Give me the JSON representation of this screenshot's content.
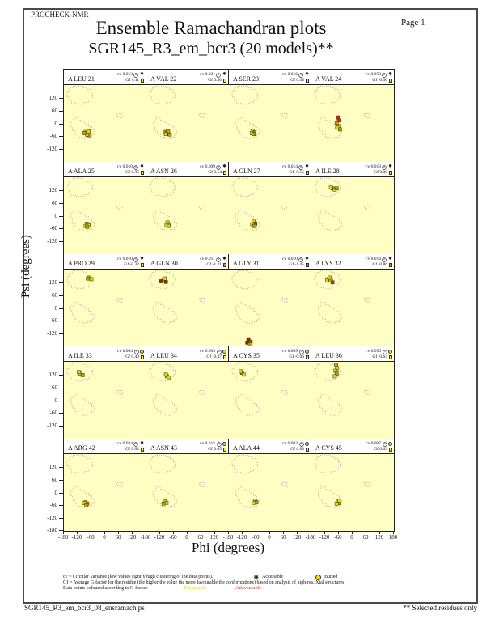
{
  "page": {
    "app": "PROCHECK-NMR",
    "page_label": "Page  1",
    "title": "Ensemble Ramachandran plots",
    "subtitle": "SGR145_R3_em_bcr3 (20 models)**",
    "footer_left": "SGR145_R3_em_bcr3_08_ensramach.ps",
    "footer_right": "** Selected residues only"
  },
  "axes": {
    "x_label": "Phi (degrees)",
    "y_label": "Psi (degrees)",
    "x_ticks_per_panel": [
      -180,
      -120,
      -60,
      0,
      60,
      120
    ],
    "x_tick_final": 180,
    "y_ticks_per_panel": [
      120,
      60,
      0,
      -60,
      -120
    ],
    "y_tick_final": -180
  },
  "stats_labels": {
    "cv_prefix": "cv",
    "gf_prefix": "Gf"
  },
  "legend": {
    "line1": "cv = Circular Variance (low values signify high clustering of the data points).",
    "accessible_label": "Accessible",
    "buried_label": "Buried",
    "line2": "Gf = Average G-factor for the residue (the higher the value the more favourable the conformations) based on analysis of high-res. Xtal structures",
    "line3": "Data points coloured according to G-factor:",
    "favourable_label": "Favourable",
    "unfavourable_label": "Unfavourable"
  },
  "colors": {
    "plot_bg": "#ffffc4",
    "region_outline": "#9a9a8a",
    "point_outline": "#3a3a00",
    "gf_favourable_square": "#ffec00",
    "gf_unfavourable_square": "#f08000",
    "points": {
      "y": "#e3cf1d",
      "v": "#a9a312",
      "o": "#e2930f",
      "r": "#d03010",
      "d": "#8c2a05"
    }
  },
  "chart_data": {
    "type": "scatter",
    "grid": "4 cols x 5 rows of Ramachandran subplots, phi/psi range -180..180",
    "subplots": [
      {
        "residue": "A LEU 21",
        "cv": "0.013",
        "gf": "0.11",
        "accessibility": "accessible",
        "gf_flag": "favourable",
        "points": [
          {
            "phi": -85,
            "psi": -40,
            "c": "y"
          },
          {
            "phi": -75,
            "psi": -45,
            "c": "o"
          },
          {
            "phi": -70,
            "psi": -55,
            "c": "o"
          },
          {
            "phi": -80,
            "psi": -52,
            "c": "y"
          },
          {
            "phi": -90,
            "psi": -45,
            "c": "v"
          },
          {
            "phi": -72,
            "psi": -38,
            "c": "y"
          }
        ]
      },
      {
        "residue": "A VAL 22",
        "cv": "0.021",
        "gf": "0.30",
        "accessibility": "accessible",
        "gf_flag": "favourable",
        "points": [
          {
            "phi": -100,
            "psi": -40,
            "c": "v"
          },
          {
            "phi": -90,
            "psi": -45,
            "c": "y"
          },
          {
            "phi": -85,
            "psi": -38,
            "c": "o"
          },
          {
            "phi": -95,
            "psi": -50,
            "c": "y"
          },
          {
            "phi": -78,
            "psi": -52,
            "c": "v"
          }
        ]
      },
      {
        "residue": "A SER 23",
        "cv": "0.016",
        "gf": "0.45",
        "accessibility": "accessible",
        "gf_flag": "favourable",
        "points": [
          {
            "phi": -75,
            "psi": -35,
            "c": "y"
          },
          {
            "phi": -68,
            "psi": -42,
            "c": "v"
          },
          {
            "phi": -80,
            "psi": -45,
            "c": "y"
          },
          {
            "phi": -72,
            "psi": -50,
            "c": "v"
          }
        ]
      },
      {
        "residue": "A VAL 24",
        "cv": "0.058",
        "gf": "-0.36",
        "accessibility": "accessible",
        "gf_flag": "favourable",
        "points": [
          {
            "phi": -65,
            "psi": 28,
            "c": "r"
          },
          {
            "phi": -60,
            "psi": 14,
            "c": "r"
          },
          {
            "phi": -70,
            "psi": 0,
            "c": "o"
          },
          {
            "phi": -62,
            "psi": -12,
            "c": "y"
          },
          {
            "phi": -55,
            "psi": -28,
            "c": "v"
          },
          {
            "phi": -68,
            "psi": -20,
            "c": "y"
          }
        ]
      },
      {
        "residue": "A ALA 25",
        "cv": "0.010",
        "gf": "0.35",
        "accessibility": "accessible",
        "gf_flag": "favourable",
        "points": [
          {
            "phi": -80,
            "psi": -38,
            "c": "v"
          },
          {
            "phi": -72,
            "psi": -45,
            "c": "y"
          },
          {
            "phi": -85,
            "psi": -48,
            "c": "y"
          },
          {
            "phi": -78,
            "psi": -52,
            "c": "v"
          }
        ]
      },
      {
        "residue": "A ASN 26",
        "cv": "0.009",
        "gf": "0.54",
        "accessibility": "accessible",
        "gf_flag": "favourable",
        "points": [
          {
            "phi": -88,
            "psi": -32,
            "c": "y"
          },
          {
            "phi": -80,
            "psi": -40,
            "c": "v"
          },
          {
            "phi": -92,
            "psi": -44,
            "c": "y"
          },
          {
            "phi": -84,
            "psi": -48,
            "c": "y"
          }
        ]
      },
      {
        "residue": "A GLN 27",
        "cv": "0.014",
        "gf": "-0.55",
        "accessibility": "accessible",
        "gf_flag": "favourable",
        "points": [
          {
            "phi": -72,
            "psi": -28,
            "c": "y"
          },
          {
            "phi": -65,
            "psi": -38,
            "c": "r"
          },
          {
            "phi": -78,
            "psi": -40,
            "c": "y"
          },
          {
            "phi": -70,
            "psi": -48,
            "c": "v"
          }
        ]
      },
      {
        "residue": "A ILE 28",
        "cv": "0.019",
        "gf": "0.00",
        "accessibility": "accessible",
        "gf_flag": "favourable",
        "points": [
          {
            "phi": -88,
            "psi": 128,
            "c": "v"
          },
          {
            "phi": -78,
            "psi": 122,
            "c": "y"
          },
          {
            "phi": -95,
            "psi": 132,
            "c": "y"
          },
          {
            "phi": -70,
            "psi": 128,
            "c": "v"
          }
        ]
      },
      {
        "residue": "A PRO 29",
        "cv": "0.010",
        "gf": "-0.32",
        "accessibility": "accessible",
        "gf_flag": "favourable",
        "points": [
          {
            "phi": -68,
            "psi": 142,
            "c": "y"
          },
          {
            "phi": -60,
            "psi": 135,
            "c": "y"
          },
          {
            "phi": -75,
            "psi": 138,
            "c": "v"
          }
        ]
      },
      {
        "residue": "A GLN 30",
        "cv": "0.011",
        "gf": "-1.21",
        "accessibility": "accessible",
        "gf_flag": "unfavourable",
        "points": [
          {
            "phi": -105,
            "psi": 130,
            "c": "y"
          },
          {
            "phi": -95,
            "psi": 122,
            "c": "d"
          },
          {
            "phi": -115,
            "psi": 125,
            "c": "d"
          },
          {
            "phi": -100,
            "psi": 138,
            "c": "y"
          }
        ]
      },
      {
        "residue": "A GLY 31",
        "cv": "0.010",
        "gf": "-1.45",
        "accessibility": "accessible",
        "gf_flag": "unfavourable",
        "points": [
          {
            "phi": -95,
            "psi": -150,
            "c": "d"
          },
          {
            "phi": -85,
            "psi": -158,
            "c": "r"
          },
          {
            "phi": -100,
            "psi": -162,
            "c": "d"
          },
          {
            "phi": -88,
            "psi": -170,
            "c": "o"
          }
        ]
      },
      {
        "residue": "A LYS 32",
        "cv": "0.014",
        "gf": "-0.86",
        "accessibility": "accessible",
        "gf_flag": "unfavourable",
        "points": [
          {
            "phi": -105,
            "psi": 135,
            "c": "y"
          },
          {
            "phi": -95,
            "psi": 128,
            "c": "y"
          },
          {
            "phi": -88,
            "psi": 120,
            "c": "r"
          },
          {
            "phi": -112,
            "psi": 128,
            "c": "y"
          },
          {
            "phi": -100,
            "psi": 142,
            "c": "y"
          }
        ]
      },
      {
        "residue": "A ILE 33",
        "cv": "0.004",
        "gf": "0.40",
        "accessibility": "buried",
        "gf_flag": "favourable",
        "points": [
          {
            "phi": -108,
            "psi": 125,
            "c": "y"
          },
          {
            "phi": -98,
            "psi": 118,
            "c": "v"
          },
          {
            "phi": -115,
            "psi": 132,
            "c": "y"
          }
        ]
      },
      {
        "residue": "A LEU 34",
        "cv": "0.005",
        "gf": "-0.37",
        "accessibility": "buried",
        "gf_flag": "favourable",
        "points": [
          {
            "phi": -90,
            "psi": 112,
            "c": "v"
          },
          {
            "phi": -82,
            "psi": 105,
            "c": "y"
          },
          {
            "phi": -95,
            "psi": 120,
            "c": "y"
          }
        ]
      },
      {
        "residue": "A CYS 35",
        "cv": "0.009",
        "gf": "-0.06",
        "accessibility": "buried",
        "gf_flag": "favourable",
        "points": [
          {
            "phi": -122,
            "psi": 128,
            "c": "v"
          },
          {
            "phi": -115,
            "psi": 120,
            "c": "y"
          },
          {
            "phi": -128,
            "psi": 135,
            "c": "y"
          }
        ]
      },
      {
        "residue": "A LEU 36",
        "cv": "0.056",
        "gf": "-0.64",
        "accessibility": "buried",
        "gf_flag": "favourable",
        "points": [
          {
            "phi": -72,
            "psi": 165,
            "c": "o"
          },
          {
            "phi": -68,
            "psi": 150,
            "c": "y"
          },
          {
            "phi": -75,
            "psi": 138,
            "c": "y"
          },
          {
            "phi": -70,
            "psi": 125,
            "c": "v"
          },
          {
            "phi": -78,
            "psi": 112,
            "c": "y"
          }
        ]
      },
      {
        "residue": "A ARG 42",
        "cv": "0.034",
        "gf": "0.02",
        "accessibility": "accessible",
        "gf_flag": "favourable",
        "points": [
          {
            "phi": -85,
            "psi": -45,
            "c": "y"
          },
          {
            "phi": -78,
            "psi": -52,
            "c": "o"
          },
          {
            "phi": -92,
            "psi": -50,
            "c": "y"
          },
          {
            "phi": -82,
            "psi": -60,
            "c": "v"
          }
        ]
      },
      {
        "residue": "A ASN 43",
        "cv": "0.015",
        "gf": "0.65",
        "accessibility": "buried",
        "gf_flag": "favourable",
        "points": [
          {
            "phi": -100,
            "psi": -42,
            "c": "y"
          },
          {
            "phi": -92,
            "psi": -48,
            "c": "y"
          },
          {
            "phi": -105,
            "psi": -52,
            "c": "v"
          }
        ]
      },
      {
        "residue": "A ALA 44",
        "cv": "0.003",
        "gf": "0.63",
        "accessibility": "buried",
        "gf_flag": "favourable",
        "points": [
          {
            "phi": -66,
            "psi": -38,
            "c": "y"
          },
          {
            "phi": -60,
            "psi": -45,
            "c": "v"
          },
          {
            "phi": -72,
            "psi": -48,
            "c": "y"
          }
        ]
      },
      {
        "residue": "A CYS 45",
        "cv": "0.007",
        "gf": "0.63",
        "accessibility": "buried",
        "gf_flag": "favourable",
        "points": [
          {
            "phi": -65,
            "psi": -42,
            "c": "y"
          },
          {
            "phi": -60,
            "psi": -50,
            "c": "v"
          },
          {
            "phi": -70,
            "psi": -52,
            "c": "y"
          },
          {
            "phi": -58,
            "psi": -38,
            "c": "y"
          }
        ]
      }
    ]
  }
}
